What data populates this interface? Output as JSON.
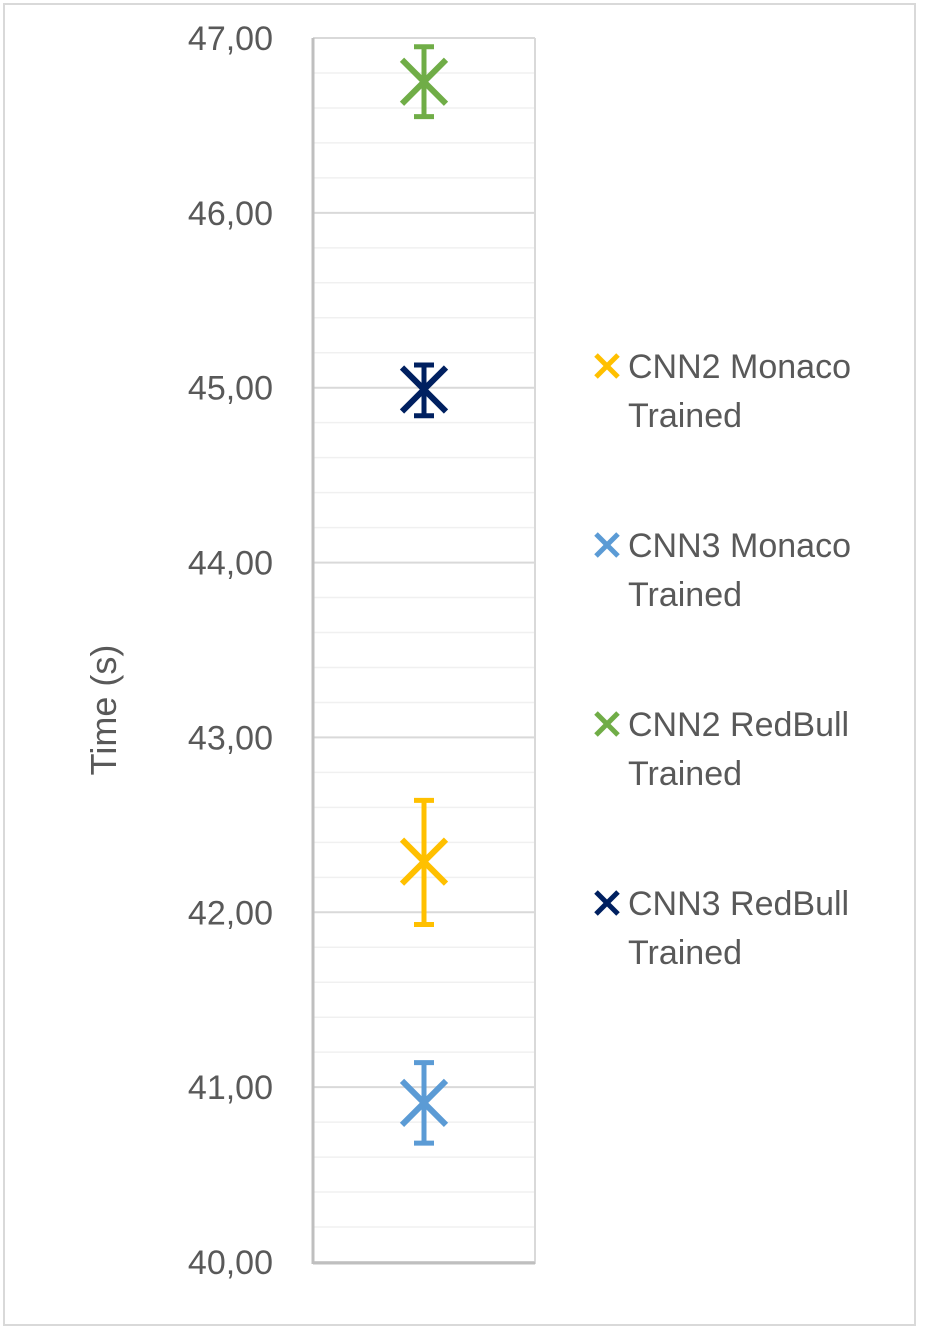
{
  "chart_data": {
    "type": "scatter",
    "ylabel": "Time (s)",
    "ylim": [
      40,
      47
    ],
    "y_ticks": [
      "40,00",
      "41,00",
      "42,00",
      "43,00",
      "44,00",
      "45,00",
      "46,00",
      "47,00"
    ],
    "minor_grid": true,
    "legend_position": "right",
    "series": [
      {
        "name": "CNN2 Monaco Trained",
        "color": "#FFC000",
        "value": 42.29,
        "error_low": 41.93,
        "error_high": 42.64,
        "marker": "x"
      },
      {
        "name": "CNN3 Monaco Trained",
        "color": "#5B9BD5",
        "value": 40.91,
        "error_low": 40.68,
        "error_high": 41.14,
        "marker": "x"
      },
      {
        "name": "CNN2 RedBull Trained",
        "color": "#70AD47",
        "value": 46.75,
        "error_low": 46.55,
        "error_high": 46.95,
        "marker": "x"
      },
      {
        "name": "CNN3 RedBull Trained",
        "color": "#002060",
        "value": 44.99,
        "error_low": 44.84,
        "error_high": 45.13,
        "marker": "x"
      }
    ]
  }
}
